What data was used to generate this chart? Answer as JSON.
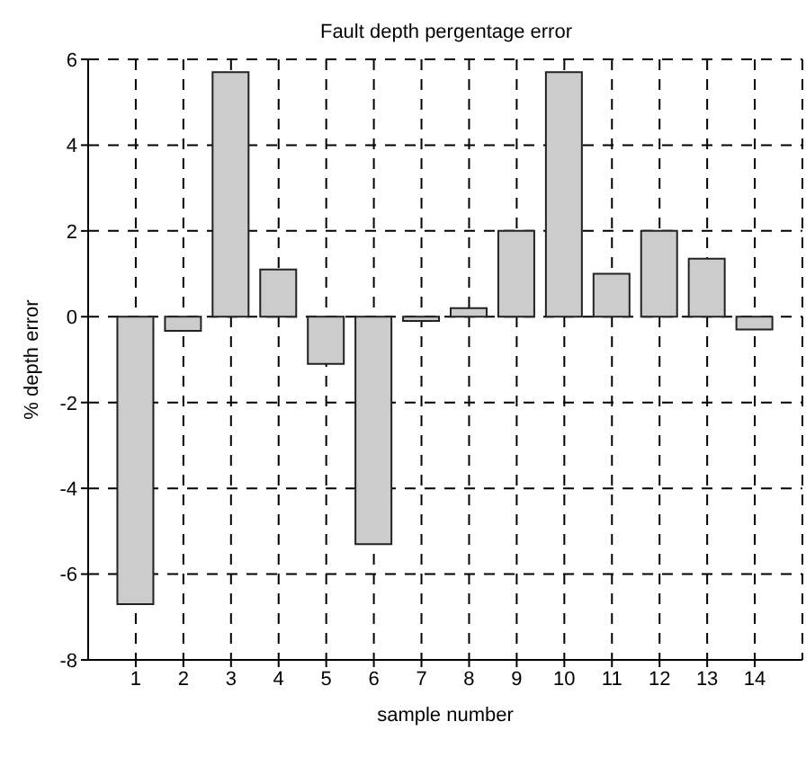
{
  "chart_data": {
    "type": "bar",
    "title": "Fault depth pergentage error",
    "xlabel": "sample number",
    "ylabel": "% depth error",
    "x": [
      1,
      2,
      3,
      4,
      5,
      6,
      7,
      8,
      9,
      10,
      11,
      12,
      13,
      14
    ],
    "values": [
      -6.7,
      -0.33,
      5.7,
      1.1,
      -1.1,
      -5.3,
      -0.1,
      0.2,
      2.0,
      5.7,
      1.0,
      2.0,
      1.35,
      -0.3
    ],
    "color": "#cccccc",
    "xlim": [
      0,
      15
    ],
    "xticks": [
      1,
      2,
      3,
      4,
      5,
      6,
      7,
      8,
      9,
      10,
      11,
      12,
      13,
      14
    ],
    "ylim": [
      -8,
      6
    ],
    "yticks": [
      -8,
      -6,
      -4,
      -2,
      0,
      2,
      4,
      6
    ],
    "grid": true,
    "line_style": "dashed"
  }
}
